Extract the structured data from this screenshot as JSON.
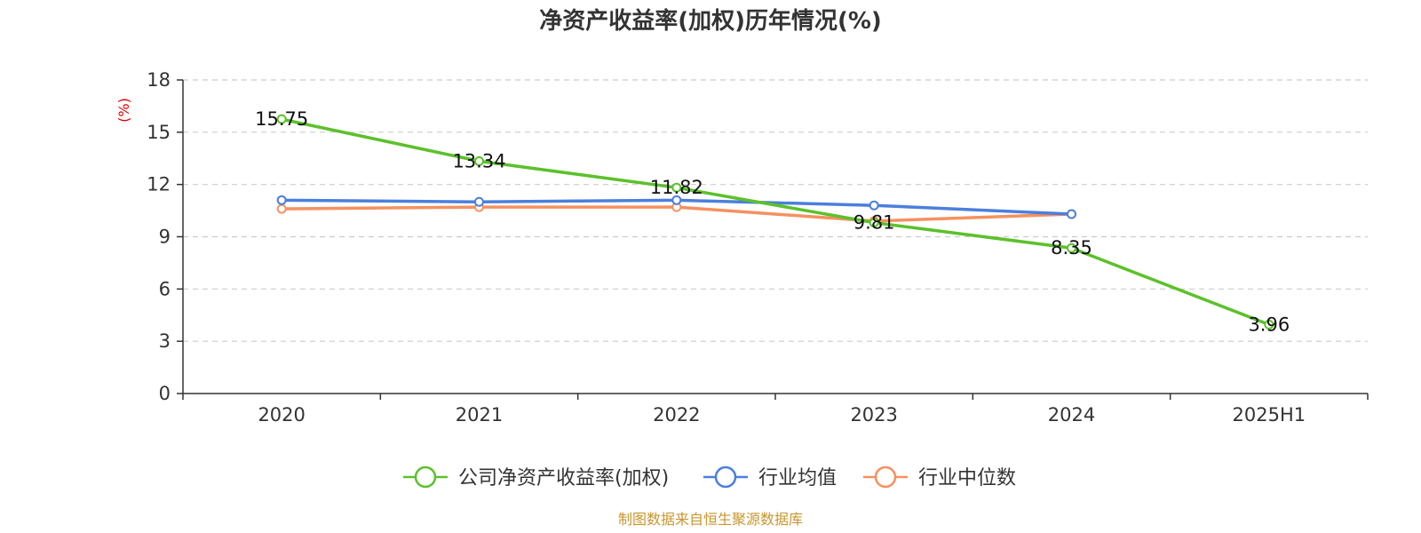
{
  "chart_data": {
    "type": "line",
    "title": "净资产收益率(加权)历年情况(%)",
    "ylabel": "(%)",
    "xlabel": "",
    "categories": [
      "2020",
      "2021",
      "2022",
      "2023",
      "2024",
      "2025H1"
    ],
    "ylim": [
      0,
      18
    ],
    "yticks": [
      0,
      3,
      6,
      9,
      12,
      15,
      18
    ],
    "grid": true,
    "legend_position": "bottom",
    "series": [
      {
        "name": "公司净资产收益率(加权)",
        "color": "#5cc12b",
        "values": [
          15.75,
          13.34,
          11.82,
          9.81,
          8.35,
          3.96
        ],
        "labels": [
          "15.75",
          "13.34",
          "11.82",
          "9.81",
          "8.35",
          "3.96"
        ]
      },
      {
        "name": "行业均值",
        "color": "#4b7fdc",
        "values": [
          11.1,
          11.0,
          11.1,
          10.8,
          10.3,
          null
        ]
      },
      {
        "name": "行业中位数",
        "color": "#f5915f",
        "values": [
          10.6,
          10.7,
          10.7,
          9.9,
          10.3,
          null
        ]
      }
    ],
    "source": "制图数据来自恒生聚源数据库"
  }
}
